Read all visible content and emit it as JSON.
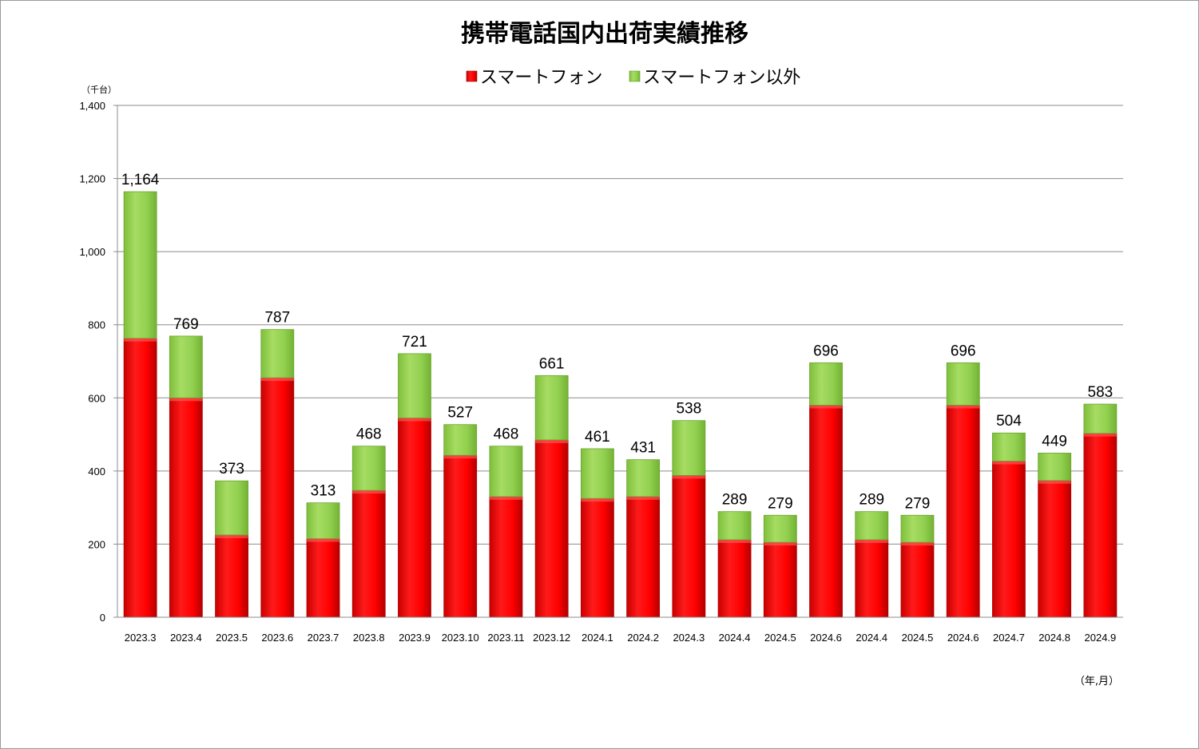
{
  "chart_data": {
    "type": "bar",
    "stacked": true,
    "title": "携帯電話国内出荷実績推移",
    "y_unit_label": "（千台）",
    "x_unit_label": "（年,月）",
    "ylim": [
      0,
      1400
    ],
    "yticks": [
      0,
      200,
      400,
      600,
      800,
      1000,
      1200,
      1400
    ],
    "ytick_labels": [
      "0",
      "200",
      "400",
      "600",
      "800",
      "1,000",
      "1,200",
      "1,400"
    ],
    "grid": true,
    "legend_position": "top-center",
    "categories": [
      "2023.3",
      "2023.4",
      "2023.5",
      "2023.6",
      "2023.7",
      "2023.8",
      "2023.9",
      "2023.10",
      "2023.11",
      "2023.12",
      "2024.1",
      "2024.2",
      "2024.3",
      "2024.4",
      "2024.5",
      "2024.6",
      "2024.4",
      "2024.5",
      "2024.6",
      "2024.7",
      "2024.8",
      "2024.9"
    ],
    "series": [
      {
        "name": "スマートフォン",
        "color": "#ff0000",
        "values": [
          763,
          600,
          225,
          655,
          215,
          347,
          545,
          443,
          330,
          485,
          325,
          330,
          388,
          212,
          205,
          580,
          212,
          205,
          580,
          427,
          374,
          503
        ]
      },
      {
        "name": "スマートフォン以外",
        "color": "#92d050",
        "values": [
          401,
          169,
          148,
          132,
          98,
          121,
          176,
          84,
          138,
          176,
          136,
          101,
          150,
          77,
          74,
          116,
          77,
          74,
          116,
          77,
          75,
          80
        ]
      }
    ],
    "totals": [
      1164,
      769,
      373,
      787,
      313,
      468,
      721,
      527,
      468,
      661,
      461,
      431,
      538,
      289,
      279,
      696,
      289,
      279,
      696,
      504,
      449,
      583
    ],
    "total_labels": [
      "1,164",
      "769",
      "373",
      "787",
      "313",
      "468",
      "721",
      "527",
      "468",
      "661",
      "461",
      "431",
      "538",
      "289",
      "279",
      "696",
      "289",
      "279",
      "696",
      "504",
      "449",
      "583"
    ]
  }
}
